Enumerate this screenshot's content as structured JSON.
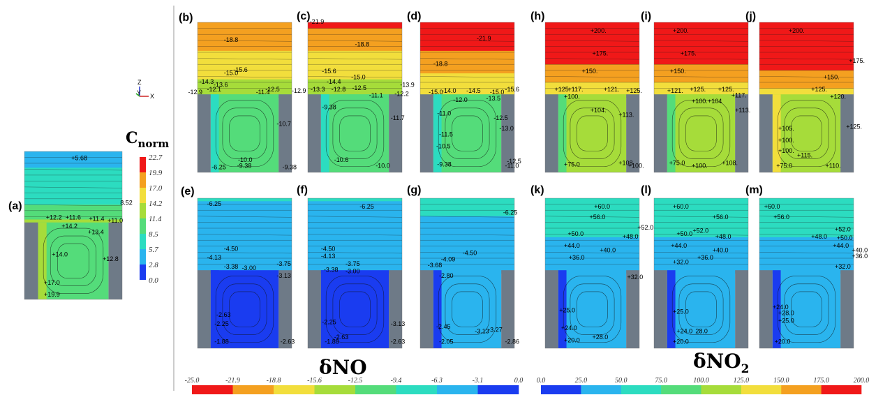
{
  "legend": {
    "title_main": "C",
    "title_sub": "norm",
    "values": [
      "22.7",
      "19.9",
      "17.0",
      "14.2",
      "11.4",
      "8.5",
      "5.7",
      "2.8",
      "0.0"
    ],
    "colors": [
      "#f01818",
      "#f4a020",
      "#f2de3c",
      "#a6dc3a",
      "#54dc7a",
      "#2cdcc0",
      "#2ab4ee",
      "#1a3cf0"
    ]
  },
  "axes_gizmo": {
    "z": "Z",
    "y": "Y",
    "x": "X"
  },
  "no_title": {
    "main": "δNO"
  },
  "no2_title": {
    "main": "δNO",
    "sub": "2"
  },
  "colorbar_no": {
    "ticks": [
      "-25.0",
      "-21.9",
      "-18.8",
      "-15.6",
      "-12.5",
      "-9.4",
      "-6.3",
      "-3.1",
      "0.0"
    ],
    "colors": [
      "#f01818",
      "#f4a020",
      "#f2de3c",
      "#a6dc3a",
      "#54dc7a",
      "#2cdcc0",
      "#2ab4ee",
      "#1a3cf0"
    ]
  },
  "colorbar_no2": {
    "ticks": [
      "0.0",
      "25.0",
      "50.0",
      "75.0",
      "100.0",
      "125.0",
      "150.0",
      "175.0",
      "200.0"
    ],
    "colors": [
      "#1a3cf0",
      "#2ab4ee",
      "#2cdcc0",
      "#54dc7a",
      "#a6dc3a",
      "#f2de3c",
      "#f4a020",
      "#f01818"
    ]
  },
  "panels": [
    {
      "label": "(a)",
      "labels": [
        "+5.68",
        "8.52",
        "+12.2",
        "+11.6",
        "+11.4",
        "+11.0",
        "+14.2",
        "+13.4",
        "+14.0",
        "+12.8",
        "+17.0",
        "+19.9"
      ]
    },
    {
      "label": "(b)",
      "labels": [
        "-18.8",
        "-15.6",
        "-14.3",
        "-15.0",
        "-13.6",
        "-12.1",
        "-12.9",
        "-11.4",
        "-12.5",
        "-12.9",
        "-10.7",
        "-6.25",
        "-9.38",
        "-10.0",
        "-9.38"
      ]
    },
    {
      "label": "(c)",
      "labels": [
        "-21.9",
        "-18.8",
        "-15.6",
        "-15.0",
        "-14.4",
        "-13.3",
        "-12.8",
        "-12.5",
        "-13.9",
        "-11.1",
        "-12.2",
        "-9.38",
        "-11.7",
        "-10.6",
        "-10.0"
      ]
    },
    {
      "label": "(d)",
      "labels": [
        "-21.9",
        "-18.8",
        "-15.0",
        "-14.0",
        "-14.5",
        "-15.0",
        "-15.6",
        "-12.0",
        "-13.5",
        "-11.0",
        "-12.5",
        "-13.0",
        "-11.5",
        "-10.5",
        "-9.38",
        "-12.5",
        "-11.0"
      ]
    },
    {
      "label": "(e)",
      "labels": [
        "-6.25",
        "-4.50",
        "-4.13",
        "-3.38",
        "-3.00",
        "-3.75",
        "-3.13",
        "-2.63",
        "-2.25",
        "-1.88",
        "-2.63"
      ]
    },
    {
      "label": "(f)",
      "labels": [
        "-6.25",
        "-4.50",
        "-4.13",
        "-3.75",
        "-3.38",
        "-3.00",
        "-2.25",
        "-2.63",
        "-1.88",
        "-3.13",
        "-2.63"
      ]
    },
    {
      "label": "(g)",
      "labels": [
        "-6.25",
        "-4.50",
        "-4.09",
        "-3.68",
        "-2.80",
        "-2.45",
        "-3.13",
        "-3.27",
        "-2.05",
        "-2.86"
      ]
    },
    {
      "label": "(h)",
      "labels": [
        "+200.",
        "+175.",
        "+150.",
        "+125.",
        "+117.",
        "+121.",
        "+125.",
        "+100.",
        "+104.",
        "+113.",
        "+75.0",
        "+100.",
        "+108."
      ]
    },
    {
      "label": "(i)",
      "labels": [
        "+200.",
        "+175.",
        "+150.",
        "+121.",
        "+125.",
        "+125.",
        "+100.",
        "+104",
        "+117.",
        "+113.",
        "+75.0",
        "+100.",
        "+108."
      ]
    },
    {
      "label": "(j)",
      "labels": [
        "+200.",
        "+175.",
        "+150.",
        "+125.",
        "+120.",
        "+105.",
        "+100.",
        "+125.",
        "+100.",
        "+115.",
        "+75.0",
        "+110."
      ]
    },
    {
      "label": "(k)",
      "labels": [
        "+60.0",
        "+56.0",
        "+52.0",
        "+50.0",
        "+48.0",
        "+44.0",
        "+40.0",
        "+36.0",
        "+32.0",
        "+25.0",
        "+24.0",
        "+20.0",
        "+28.0"
      ]
    },
    {
      "label": "(l)",
      "labels": [
        "+60.0",
        "+56.0",
        "+52.0",
        "+50.0",
        "+48.0",
        "+44.0",
        "+40.0",
        "+36.0",
        "+32.0",
        "+25.0",
        "+24.0",
        "28.0",
        "+20.0"
      ]
    },
    {
      "label": "(m)",
      "labels": [
        "+60.0",
        "+56.0",
        "+52.0",
        "+50.0",
        "+48.0",
        "+44.0",
        "+40.0",
        "+36.0",
        "+32.0",
        "+24.0",
        "+28.0",
        "+25.0",
        "+20.0"
      ]
    }
  ]
}
